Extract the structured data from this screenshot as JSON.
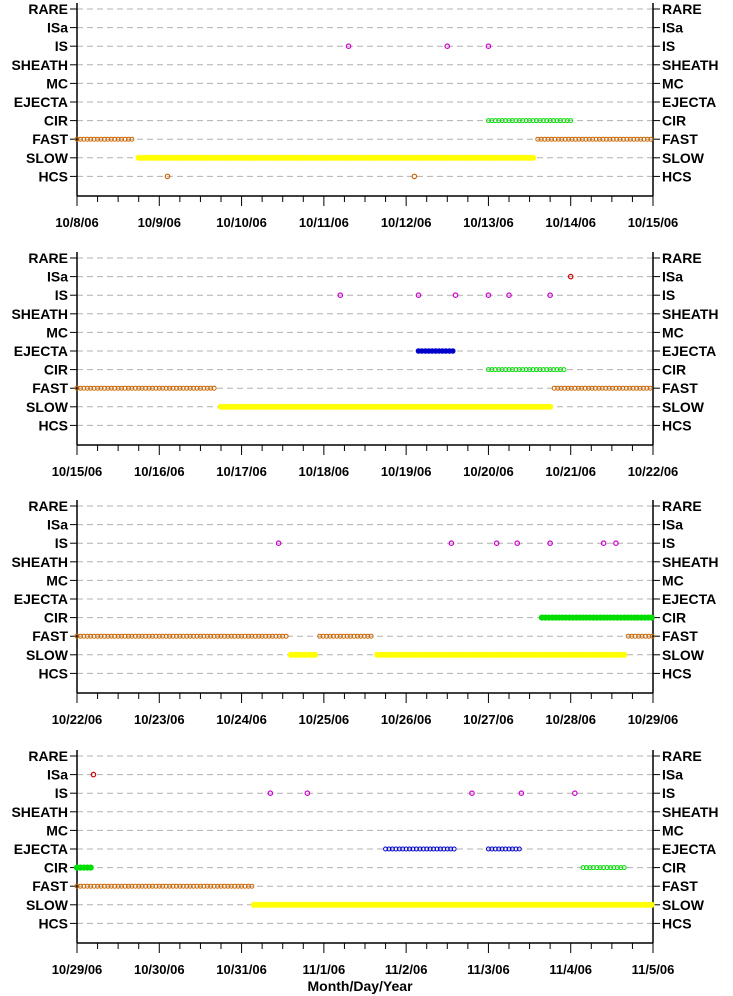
{
  "chart_data": {
    "type": "scatter",
    "xlabel": "Month/Day/Year",
    "categories": [
      "RARE",
      "ISa",
      "IS",
      "SHEATH",
      "MC",
      "EJECTA",
      "CIR",
      "FAST",
      "SLOW",
      "HCS"
    ],
    "grid": true,
    "colors": {
      "ISa": "#cc0000",
      "IS": "#cc00cc",
      "EJECTA": "#0000cc",
      "CIR": "#00dd00",
      "FAST": "#cc6600",
      "SLOW": "#ffff00",
      "HCS": "#cc6600"
    },
    "panels": [
      {
        "start": "2006-10-08",
        "ticks": [
          "10/8/06",
          "10/9/06",
          "10/10/06",
          "10/11/06",
          "10/12/06",
          "10/13/06",
          "10/14/06",
          "10/15/06"
        ],
        "points": [
          {
            "category": "IS",
            "x": [
              3.3,
              4.5,
              5.0
            ]
          },
          {
            "category": "HCS",
            "x": [
              1.1,
              4.1
            ]
          }
        ],
        "runs": [
          {
            "category": "FAST",
            "start": 0.0,
            "end": 0.7,
            "style": "open"
          },
          {
            "category": "FAST",
            "start": 5.6,
            "end": 7.0,
            "style": "open"
          },
          {
            "category": "SLOW",
            "start": 0.75,
            "end": 5.55,
            "style": "solid"
          },
          {
            "category": "CIR",
            "start": 5.0,
            "end": 6.0,
            "style": "open"
          }
        ]
      },
      {
        "start": "2006-10-15",
        "ticks": [
          "10/15/06",
          "10/16/06",
          "10/17/06",
          "10/18/06",
          "10/19/06",
          "10/20/06",
          "10/21/06",
          "10/22/06"
        ],
        "points": [
          {
            "category": "ISa",
            "x": [
              6.0
            ]
          },
          {
            "category": "IS",
            "x": [
              3.2,
              4.15,
              4.6,
              5.0,
              5.25,
              5.75
            ]
          }
        ],
        "runs": [
          {
            "category": "FAST",
            "start": 0.0,
            "end": 1.7,
            "style": "open"
          },
          {
            "category": "FAST",
            "start": 5.8,
            "end": 7.0,
            "style": "open"
          },
          {
            "category": "SLOW",
            "start": 1.75,
            "end": 5.75,
            "style": "solid"
          },
          {
            "category": "EJECTA",
            "start": 4.15,
            "end": 4.6,
            "style": "filled"
          },
          {
            "category": "CIR",
            "start": 5.0,
            "end": 5.95,
            "style": "open"
          }
        ]
      },
      {
        "start": "2006-10-22",
        "ticks": [
          "10/22/06",
          "10/23/06",
          "10/24/06",
          "10/25/06",
          "10/26/06",
          "10/27/06",
          "10/28/06",
          "10/29/06"
        ],
        "points": [
          {
            "category": "IS",
            "x": [
              2.45,
              4.55,
              5.1,
              5.35,
              5.75,
              6.4,
              6.55
            ]
          }
        ],
        "runs": [
          {
            "category": "FAST",
            "start": 0.0,
            "end": 2.55,
            "style": "open"
          },
          {
            "category": "FAST",
            "start": 2.95,
            "end": 3.6,
            "style": "open"
          },
          {
            "category": "FAST",
            "start": 6.7,
            "end": 7.0,
            "style": "open"
          },
          {
            "category": "SLOW",
            "start": 2.6,
            "end": 2.9,
            "style": "solid"
          },
          {
            "category": "SLOW",
            "start": 3.65,
            "end": 6.65,
            "style": "solid"
          },
          {
            "category": "CIR",
            "start": 5.65,
            "end": 7.0,
            "style": "solid"
          }
        ]
      },
      {
        "start": "2006-10-29",
        "ticks": [
          "10/29/06",
          "10/30/06",
          "10/31/06",
          "11/1/06",
          "11/2/06",
          "11/3/06",
          "11/4/06",
          "11/5/06"
        ],
        "points": [
          {
            "category": "ISa",
            "x": [
              0.2
            ]
          },
          {
            "category": "IS",
            "x": [
              2.35,
              2.8,
              4.8,
              5.4,
              6.05
            ]
          }
        ],
        "runs": [
          {
            "category": "CIR",
            "start": 0.0,
            "end": 0.18,
            "style": "solid"
          },
          {
            "category": "CIR",
            "start": 6.15,
            "end": 6.65,
            "style": "open"
          },
          {
            "category": "FAST",
            "start": 0.0,
            "end": 2.15,
            "style": "open"
          },
          {
            "category": "SLOW",
            "start": 2.15,
            "end": 7.0,
            "style": "solid"
          },
          {
            "category": "EJECTA",
            "start": 3.75,
            "end": 4.6,
            "style": "open"
          },
          {
            "category": "EJECTA",
            "start": 5.0,
            "end": 5.4,
            "style": "open"
          }
        ]
      }
    ]
  }
}
